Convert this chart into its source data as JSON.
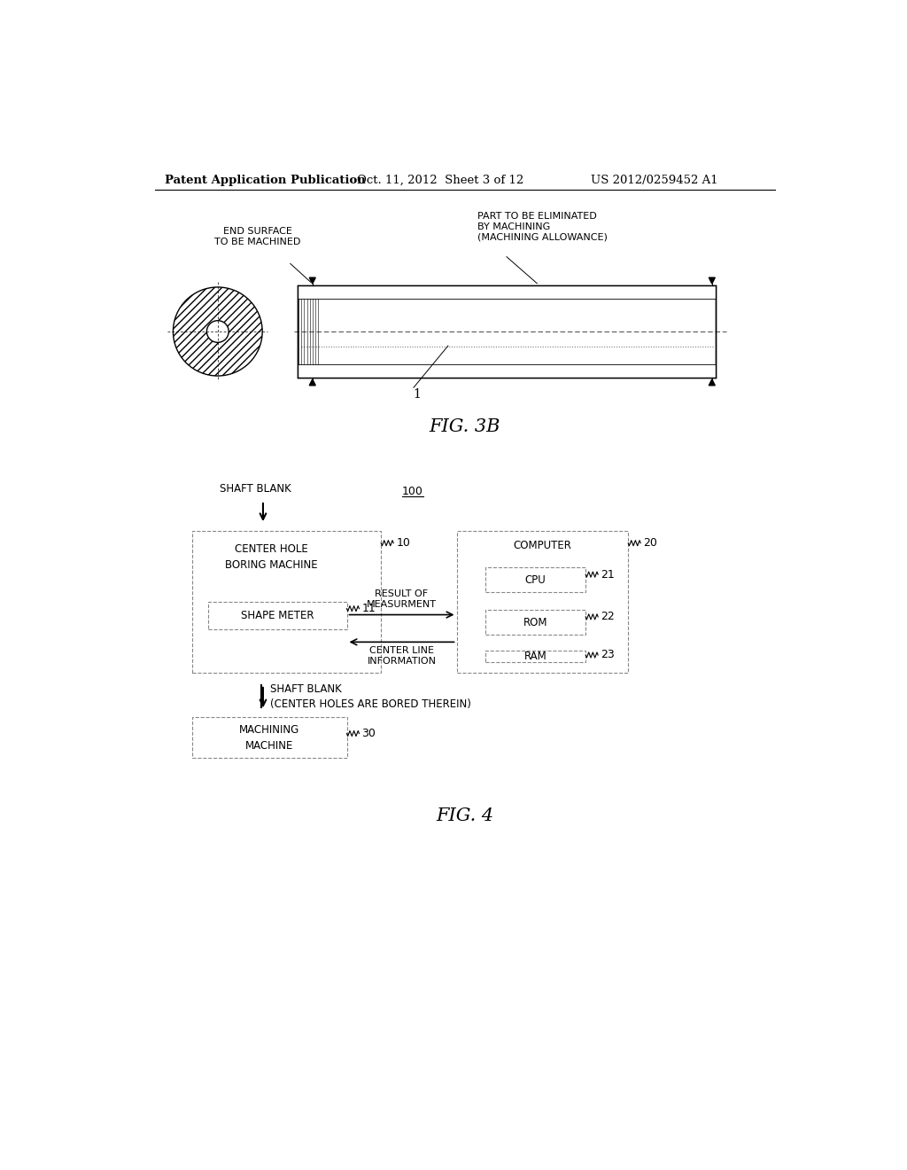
{
  "bg_color": "#ffffff",
  "header_text": "Patent Application Publication",
  "header_date": "Oct. 11, 2012  Sheet 3 of 12",
  "header_patent": "US 2012/0259452 A1",
  "fig3b_label": "FIG. 3B",
  "fig4_label": "FIG. 4",
  "annotation_end_surface": "END SURFACE\nTO BE MACHINED",
  "annotation_part": "PART TO BE ELIMINATED\nBY MACHINING\n(MACHINING ALLOWANCE)",
  "shaft_label": "1",
  "label_100": "100",
  "label_shaft_blank": "SHAFT BLANK",
  "label_10": "10",
  "label_11": "11",
  "label_20": "20",
  "label_21": "21",
  "label_22": "22",
  "label_23": "23",
  "label_30": "30",
  "box_chbm": "CENTER HOLE\nBORING MACHINE",
  "box_sm": "SHAPE METER",
  "box_computer": "COMPUTER",
  "box_cpu": "CPU",
  "box_rom": "ROM",
  "box_ram": "RAM",
  "box_machining": "MACHINING\nMACHINE",
  "text_result": "RESULT OF\nMEASURMENT",
  "text_centerline": "CENTER LINE\nINFORMATION",
  "text_shaft_bored": "SHAFT BLANK\n(CENTER HOLES ARE BORED THEREIN)"
}
